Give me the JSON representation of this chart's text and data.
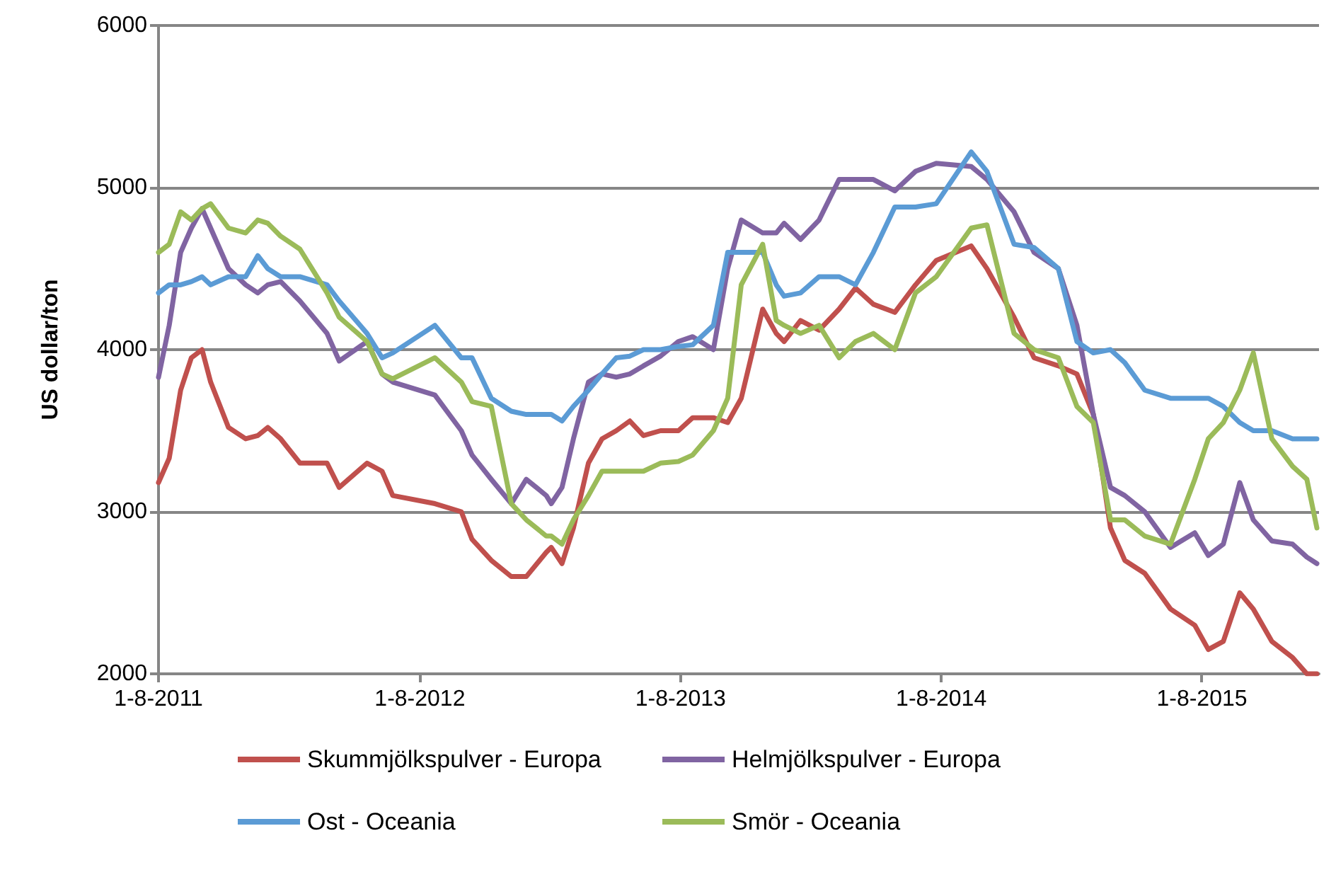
{
  "chart_data": {
    "type": "line",
    "ylabel": "US dollar/ton",
    "x": [
      "2011-08-01",
      "2011-08-16",
      "2011-09-01",
      "2011-09-16",
      "2011-10-01",
      "2011-10-13",
      "2011-11-07",
      "2011-12-01",
      "2011-12-18",
      "2012-01-01",
      "2012-01-19",
      "2012-02-15",
      "2012-03-24",
      "2012-04-10",
      "2012-05-19",
      "2012-06-09",
      "2012-06-24",
      "2012-08-22",
      "2012-09-28",
      "2012-10-13",
      "2012-11-09",
      "2012-12-07",
      "2012-12-28",
      "2013-01-25",
      "2013-02-01",
      "2013-02-16",
      "2013-03-04",
      "2013-03-25",
      "2013-04-13",
      "2013-05-03",
      "2013-05-22",
      "2013-06-10",
      "2013-07-04",
      "2013-07-29",
      "2013-08-18",
      "2013-09-16",
      "2013-10-06",
      "2013-10-25",
      "2013-11-24",
      "2013-12-13",
      "2013-12-24",
      "2014-01-16",
      "2014-02-11",
      "2014-03-11",
      "2014-04-03",
      "2014-04-28",
      "2014-05-28",
      "2014-06-26",
      "2014-07-25",
      "2014-09-12",
      "2014-10-04",
      "2014-11-11",
      "2014-12-09",
      "2015-01-12",
      "2015-02-07",
      "2015-03-02",
      "2015-03-26",
      "2015-04-15",
      "2015-05-13",
      "2015-06-18",
      "2015-07-22",
      "2015-08-10",
      "2015-08-31",
      "2015-09-23",
      "2015-10-12",
      "2015-11-07",
      "2015-12-06",
      "2015-12-26",
      "2016-01-09"
    ],
    "series": [
      {
        "name": "Skummjölkspulver - Europa",
        "color": "#c0504d",
        "values": [
          3180,
          3330,
          3750,
          3950,
          4000,
          3800,
          3520,
          3450,
          3470,
          3520,
          3450,
          3300,
          3300,
          3150,
          3300,
          3250,
          3100,
          3050,
          3000,
          2830,
          2700,
          2600,
          2600,
          2750,
          2780,
          2680,
          2900,
          3300,
          3450,
          3500,
          3560,
          3470,
          3500,
          3500,
          3580,
          3580,
          3550,
          3700,
          4250,
          4100,
          4050,
          4180,
          4120,
          4250,
          4380,
          4280,
          4230,
          4400,
          4550,
          4640,
          4500,
          4200,
          3950,
          3900,
          3850,
          3600,
          2900,
          2700,
          2620,
          2400,
          2300,
          2150,
          2200,
          2500,
          2400,
          2200,
          2100,
          2000,
          2000
        ]
      },
      {
        "name": "Helmjölkspulver - Europa",
        "color": "#8064a2",
        "values": [
          3830,
          4150,
          4600,
          4750,
          4870,
          4750,
          4500,
          4400,
          4350,
          4400,
          4420,
          4300,
          4100,
          3930,
          4050,
          3850,
          3800,
          3720,
          3500,
          3350,
          3200,
          3050,
          3200,
          3100,
          3050,
          3150,
          3450,
          3800,
          3850,
          3830,
          3850,
          3900,
          3960,
          4050,
          4080,
          4000,
          4500,
          4800,
          4720,
          4720,
          4780,
          4680,
          4800,
          5050,
          5050,
          5050,
          4980,
          5100,
          5150,
          5130,
          5050,
          4850,
          4600,
          4500,
          4150,
          3600,
          3150,
          3100,
          3000,
          2780,
          2870,
          2730,
          2800,
          3180,
          2950,
          2820,
          2800,
          2720,
          2680
        ]
      },
      {
        "name": "Ost - Oceania",
        "color": "#5b9bd5",
        "values": [
          4350,
          4400,
          4400,
          4420,
          4450,
          4400,
          4450,
          4450,
          4580,
          4500,
          4450,
          4450,
          4400,
          4300,
          4100,
          3950,
          3980,
          4150,
          3950,
          3950,
          3700,
          3620,
          3600,
          3600,
          3600,
          3560,
          3650,
          3750,
          3850,
          3950,
          3960,
          4000,
          4000,
          4020,
          4030,
          4150,
          4600,
          4600,
          4600,
          4400,
          4330,
          4350,
          4450,
          4450,
          4400,
          4600,
          4880,
          4880,
          4900,
          5220,
          5100,
          4650,
          4630,
          4500,
          4050,
          3980,
          4000,
          3920,
          3750,
          3700,
          3700,
          3700,
          3650,
          3550,
          3500,
          3500,
          3450,
          3450,
          3450
        ]
      },
      {
        "name": "Smör - Oceania",
        "color": "#9bbb59",
        "values": [
          4600,
          4650,
          4850,
          4800,
          4870,
          4900,
          4750,
          4720,
          4800,
          4780,
          4700,
          4620,
          4350,
          4200,
          4050,
          3850,
          3820,
          3950,
          3800,
          3680,
          3650,
          3050,
          2950,
          2850,
          2850,
          2800,
          2950,
          3100,
          3250,
          3250,
          3250,
          3250,
          3300,
          3310,
          3350,
          3500,
          3700,
          4400,
          4650,
          4180,
          4150,
          4100,
          4150,
          3950,
          4050,
          4100,
          4000,
          4350,
          4450,
          4750,
          4770,
          4100,
          4000,
          3950,
          3650,
          3550,
          2950,
          2950,
          2850,
          2800,
          3200,
          3450,
          3550,
          3750,
          3980,
          3450,
          3280,
          3200,
          2900
        ]
      }
    ],
    "xlim": [
      "2011-08-01",
      "2016-01-12"
    ],
    "xticks": [
      {
        "value": "2011-08-01",
        "label": "1-8-2011"
      },
      {
        "value": "2012-08-01",
        "label": "1-8-2012"
      },
      {
        "value": "2013-08-01",
        "label": "1-8-2013"
      },
      {
        "value": "2014-08-01",
        "label": "1-8-2014"
      },
      {
        "value": "2015-08-01",
        "label": "1-8-2015"
      }
    ],
    "ylim": [
      2000,
      6000
    ],
    "yticks": [
      2000,
      3000,
      4000,
      5000,
      6000
    ],
    "grid": "y",
    "legend": "bottom",
    "marker": "none",
    "line_style": "solid"
  }
}
